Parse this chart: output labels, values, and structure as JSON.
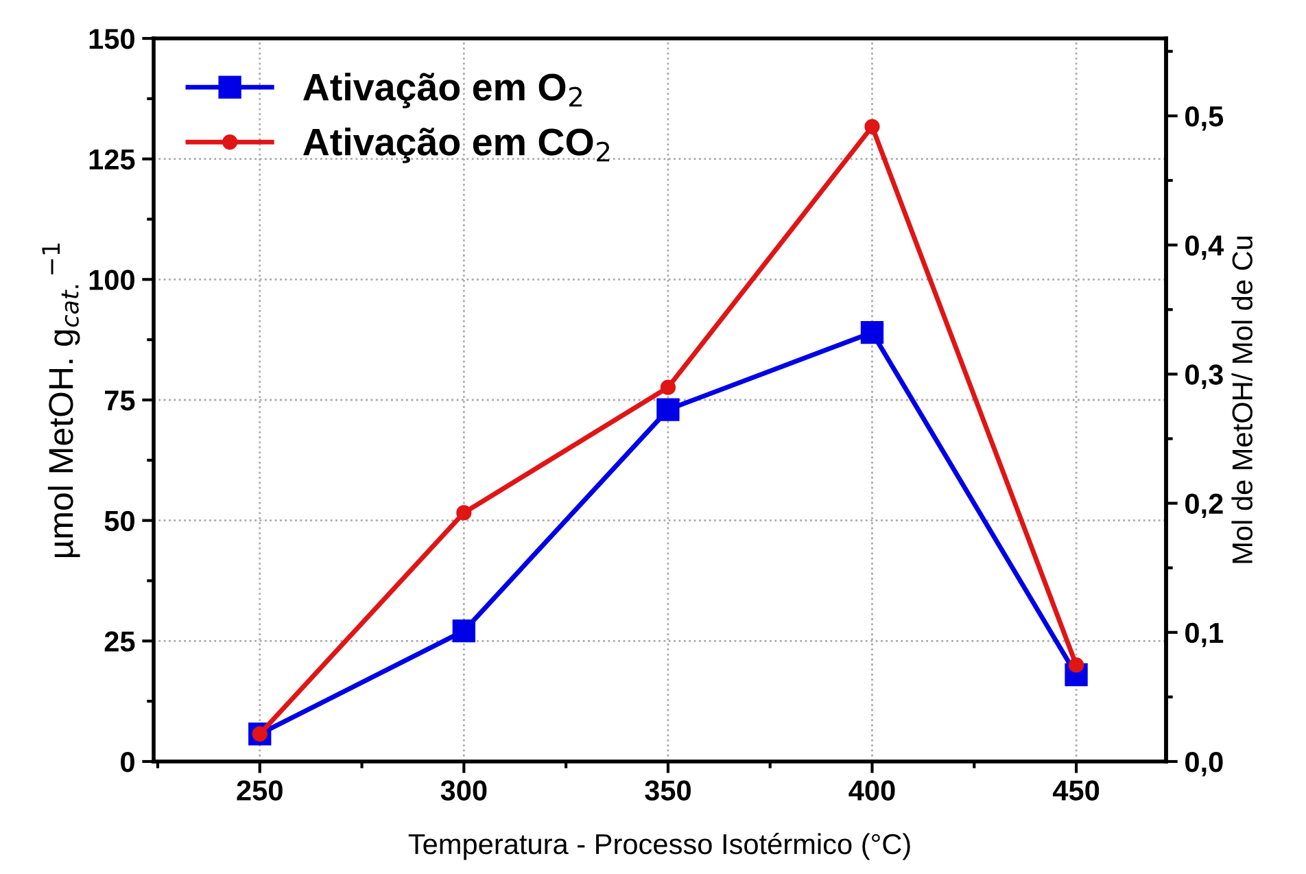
{
  "chart_data": {
    "type": "line",
    "xlabel": "Temperatura - Processo Isotérmico (°C)",
    "ylabel": "µmol MetOH. g$_{cat.}$$^{−1}$",
    "y2label": "Mol de MetOH/ Mol de Cu",
    "x": [
      250,
      300,
      350,
      400,
      450
    ],
    "series": [
      {
        "name": "Ativação em O$_{2}$",
        "color": "#0000e6",
        "marker": "square",
        "values": [
          5.7,
          27.1,
          73,
          89,
          18
        ]
      },
      {
        "name": "Ativação em CO$_{2}$",
        "color": "#e01515",
        "marker": "circle",
        "values": [
          5.7,
          51.6,
          77.6,
          131.7,
          20
        ]
      }
    ],
    "xlim": [
      224,
      472
    ],
    "xticks": [
      250,
      300,
      350,
      400,
      450
    ],
    "ylim": [
      0,
      150
    ],
    "yticks": [
      0,
      25,
      50,
      75,
      100,
      125,
      150
    ],
    "y2lim": [
      0,
      0.56
    ],
    "y2ticks": [
      {
        "value": 0,
        "label": "0,0"
      },
      {
        "value": 0.1,
        "label": "0,1"
      },
      {
        "value": 0.2,
        "label": "0,2"
      },
      {
        "value": 0.3,
        "label": "0,3"
      },
      {
        "value": 0.4,
        "label": "0,4"
      },
      {
        "value": 0.5,
        "label": "0,5"
      }
    ],
    "grid": true,
    "legend": "top left",
    "line_style": "solid"
  }
}
